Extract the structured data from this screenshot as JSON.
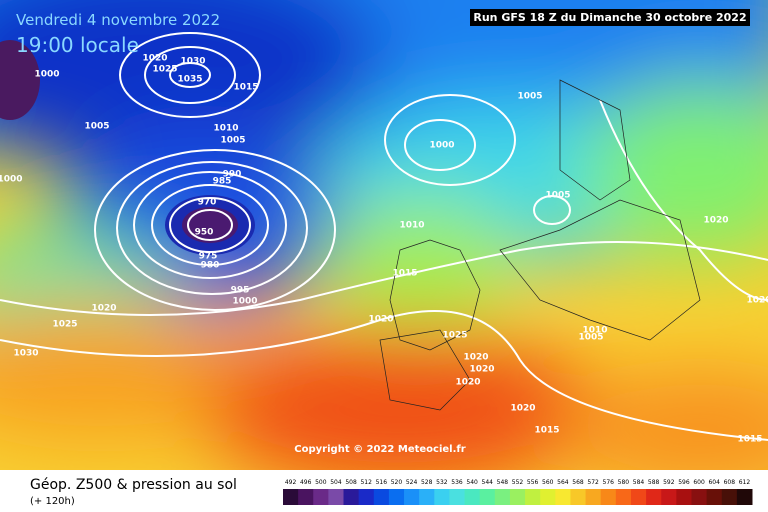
{
  "header": {
    "date": "Vendredi 4 novembre 2022",
    "time": "19:00 locale",
    "run": "Run GFS 18 Z du Dimanche 30 octobre 2022"
  },
  "copyright": "Copyright © 2022 Meteociel.fr",
  "footer": {
    "title": "Géop. Z500 & pression au sol",
    "lead": "(+ 120h)"
  },
  "isobar_labels": [
    "1000",
    "1020",
    "1030",
    "1025",
    "1035",
    "1015",
    "1005",
    "1010",
    "1005",
    "1000",
    "1005",
    "1000",
    "990",
    "985",
    "970",
    "950",
    "975",
    "980",
    "995",
    "1000",
    "1010",
    "1005",
    "1015",
    "1020",
    "1025",
    "1030",
    "1020",
    "1025",
    "1020",
    "1020",
    "1020",
    "1020",
    "1015",
    "1010",
    "1005",
    "1020",
    "1020",
    "1015"
  ],
  "scale": {
    "labels": [
      "492",
      "496",
      "500",
      "504",
      "508",
      "512",
      "516",
      "520",
      "524",
      "528",
      "532",
      "536",
      "540",
      "544",
      "548",
      "552",
      "556",
      "560",
      "564",
      "568",
      "572",
      "576",
      "580",
      "584",
      "588",
      "592",
      "596",
      "600",
      "604",
      "608",
      "612"
    ],
    "colors": [
      "#2a0b38",
      "#4a1460",
      "#6a2a88",
      "#7a4aa8",
      "#2a1a9a",
      "#1a2ac8",
      "#0a4ae0",
      "#0a6ef0",
      "#1a90f8",
      "#2ab0f8",
      "#3ad0f0",
      "#4ae0e0",
      "#4ae8c0",
      "#5af0a0",
      "#7af080",
      "#9af060",
      "#c0f040",
      "#e0f030",
      "#f8e830",
      "#f8c828",
      "#f8a820",
      "#f88818",
      "#f86818",
      "#f04818",
      "#e02818",
      "#c81818",
      "#a81010",
      "#881010",
      "#681008",
      "#481008",
      "#200808"
    ]
  }
}
